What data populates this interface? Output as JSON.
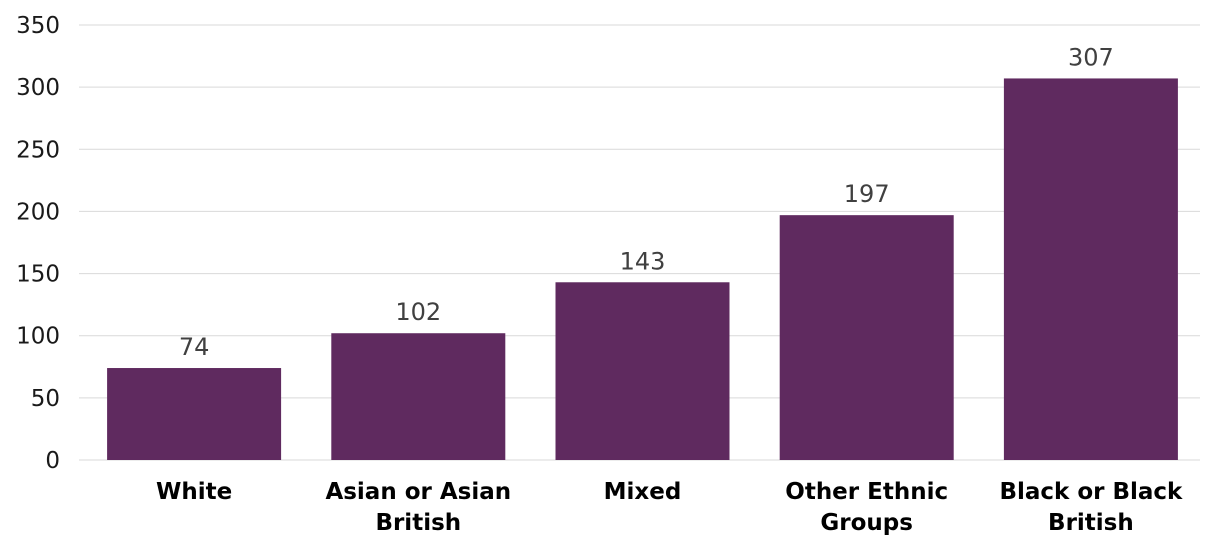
{
  "chart_data": {
    "type": "bar",
    "title": "",
    "xlabel": "",
    "ylabel": "",
    "categories": [
      [
        "White"
      ],
      [
        "Asian or Asian",
        "British"
      ],
      [
        "Mixed"
      ],
      [
        "Other Ethnic",
        "Groups"
      ],
      [
        "Black or Black",
        "British"
      ]
    ],
    "values": [
      74,
      102,
      143,
      197,
      307
    ],
    "ylim": [
      0,
      350
    ],
    "yticks": [
      0,
      50,
      100,
      150,
      200,
      250,
      300,
      350
    ],
    "grid": true,
    "legend": "none",
    "bar_color": "#5f2a5f"
  }
}
